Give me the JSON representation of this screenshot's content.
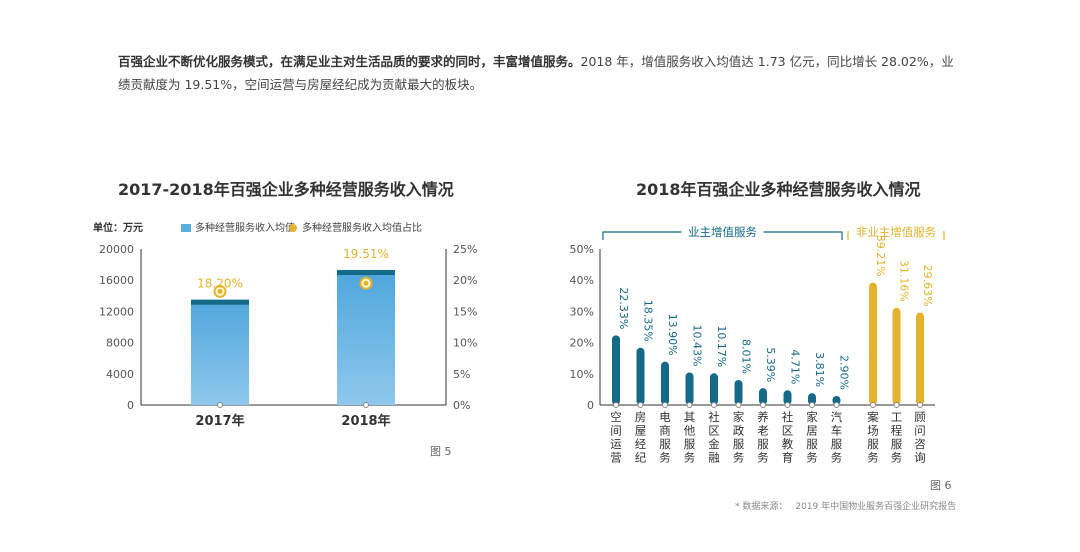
{
  "intro": {
    "bold_text": "百强企业不断优化服务模式，在满足业主对生活品质的要求的同时，丰富增值服务。",
    "rest_text": "2018 年，增值服务收入均值达 1.73 亿元，同比增长 28.02%，业绩贡献度为 19.51%，空间运营与房屋经纪成为贡献最大的板块。"
  },
  "figures": {
    "left": "图 5",
    "right": "图 6"
  },
  "source": {
    "label": "* 数据来源：",
    "text": "2019 年中国物业服务百强企业研究报告"
  },
  "colors": {
    "light_blue": "#5aade0",
    "dark_teal": "#156a8a",
    "gold": "#e3b32e",
    "axis_text": "#555555"
  },
  "chart_data": [
    {
      "type": "bar",
      "title": "2017-2018年百强企业多种经营服务收入情况",
      "unit_label": "单位：万元",
      "legend": [
        "多种经营服务收入均值",
        "多种经营服务收入均值占比"
      ],
      "categories": [
        "2017年",
        "2018年"
      ],
      "series": [
        {
          "name": "多种经营服务收入均值",
          "values": [
            13500,
            17300
          ]
        },
        {
          "name": "多种经营服务收入均值占比",
          "values": [
            18.2,
            19.51
          ],
          "labels": [
            "18.20%",
            "19.51%"
          ]
        }
      ],
      "left_axis": {
        "ylim": [
          0,
          20000
        ],
        "ticks": [
          "0",
          "4000",
          "8000",
          "12000",
          "16000",
          "20000"
        ]
      },
      "right_axis": {
        "ylim": [
          0,
          25
        ],
        "ticks": [
          "0%",
          "5%",
          "10%",
          "15%",
          "20%",
          "25%"
        ]
      }
    },
    {
      "type": "bar",
      "title": "2018年百强企业多种经营服务收入情况",
      "groups": [
        {
          "label": "业主增值服务",
          "count": 10
        },
        {
          "label": "非业主增值服务",
          "count": 3
        }
      ],
      "categories": [
        "空间运营",
        "房屋经纪",
        "电商服务",
        "其他服务",
        "社区金融",
        "家政服务",
        "养老服务",
        "社区教育",
        "家居服务",
        "汽车服务",
        "案场服务",
        "工程服务",
        "顾问咨询"
      ],
      "values": [
        22.33,
        18.35,
        13.9,
        10.43,
        10.17,
        8.01,
        5.39,
        4.71,
        3.81,
        2.9,
        39.21,
        31.16,
        29.63
      ],
      "labels": [
        "22.33%",
        "18.35%",
        "13.90%",
        "10.43%",
        "10.17%",
        "8.01%",
        "5.39%",
        "4.71%",
        "3.81%",
        "2.90%",
        "39.21%",
        "31.16%",
        "29.63%"
      ],
      "ylim": [
        0,
        50
      ],
      "yticks": [
        "0",
        "10%",
        "20%",
        "30%",
        "40%",
        "50%"
      ]
    }
  ]
}
